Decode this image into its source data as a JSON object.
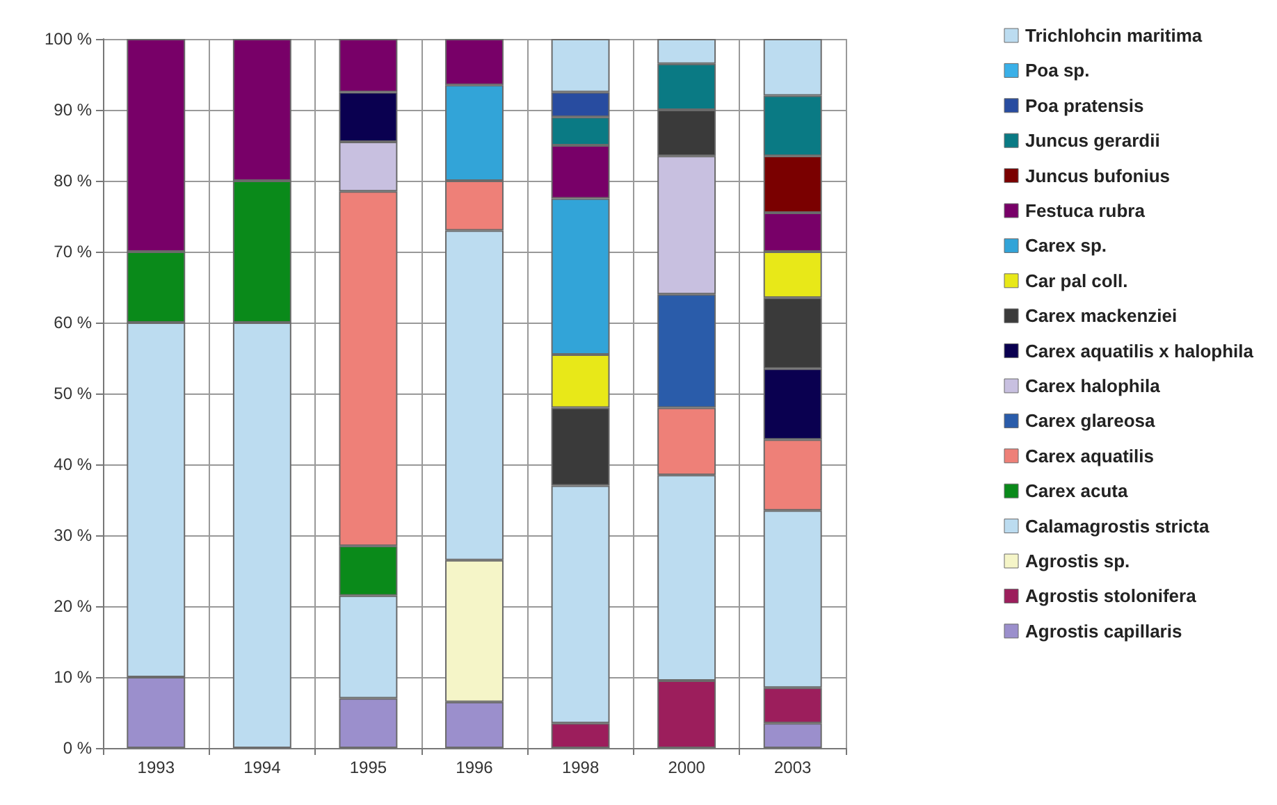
{
  "chart_data": {
    "type": "bar",
    "stacked": true,
    "categories": [
      "1993",
      "1994",
      "1995",
      "1996",
      "1998",
      "2000",
      "2003"
    ],
    "ylim": [
      0,
      100
    ],
    "yticks": [
      {
        "value": 0,
        "label": "0 %"
      },
      {
        "value": 10,
        "label": "10 %"
      },
      {
        "value": 20,
        "label": "20 %"
      },
      {
        "value": 30,
        "label": "30 %"
      },
      {
        "value": 40,
        "label": "40 %"
      },
      {
        "value": 50,
        "label": "50 %"
      },
      {
        "value": 60,
        "label": "60 %"
      },
      {
        "value": 70,
        "label": "70 %"
      },
      {
        "value": 80,
        "label": "80 %"
      },
      {
        "value": 90,
        "label": "90 %"
      },
      {
        "value": 100,
        "label": "100 %"
      }
    ],
    "grid": true,
    "legend": "right",
    "series": [
      {
        "name": "Agrostis capillaris",
        "color": "#9b8fcc",
        "values": [
          10,
          null,
          7,
          6.5,
          null,
          null,
          3.5
        ]
      },
      {
        "name": "Agrostis stolonifera",
        "color": "#9c1e5c",
        "values": [
          null,
          null,
          null,
          null,
          3.5,
          9.5,
          5
        ]
      },
      {
        "name": "Agrostis sp.",
        "color": "#f5f5c8",
        "values": [
          null,
          null,
          null,
          20,
          null,
          null,
          null
        ]
      },
      {
        "name": "Calamagrostis stricta",
        "color": "#bcdcf0",
        "values": [
          50,
          60,
          14.5,
          46.5,
          33.5,
          29,
          25
        ]
      },
      {
        "name": "Carex acuta",
        "color": "#0a8a1a",
        "values": [
          10,
          20,
          7,
          null,
          null,
          null,
          null
        ]
      },
      {
        "name": "Carex aquatilis",
        "color": "#ee8078",
        "values": [
          null,
          null,
          50,
          7,
          null,
          9.5,
          10
        ]
      },
      {
        "name": "Carex glareosa",
        "color": "#2a5caa",
        "values": [
          null,
          null,
          null,
          null,
          null,
          16,
          null
        ]
      },
      {
        "name": "Carex halophila",
        "color": "#c8c0e0",
        "values": [
          null,
          null,
          7,
          null,
          null,
          19.5,
          null
        ]
      },
      {
        "name": "Carex aquatilis x halophila",
        "color": "#0a0050",
        "values": [
          null,
          null,
          7,
          null,
          null,
          null,
          10
        ]
      },
      {
        "name": "Carex mackenziei",
        "color": "#3a3a3a",
        "values": [
          null,
          null,
          null,
          null,
          11,
          6.5,
          10
        ]
      },
      {
        "name": "Car pal coll.",
        "color": "#e8e818",
        "values": [
          null,
          null,
          null,
          null,
          7.5,
          null,
          6.5
        ]
      },
      {
        "name": "Carex sp.",
        "color": "#32a4d8",
        "values": [
          null,
          null,
          null,
          13.5,
          22,
          null,
          null
        ]
      },
      {
        "name": "Festuca rubra",
        "color": "#780068",
        "values": [
          30,
          20,
          7.5,
          6.5,
          7.5,
          null,
          5.5
        ]
      },
      {
        "name": "Juncus bufonius",
        "color": "#7a0000",
        "values": [
          null,
          null,
          null,
          null,
          null,
          null,
          8
        ]
      },
      {
        "name": "Juncus gerardii",
        "color": "#0a7a84",
        "values": [
          null,
          null,
          null,
          null,
          4,
          6.5,
          8.5
        ]
      },
      {
        "name": "Poa pratensis",
        "color": "#284ca0",
        "values": [
          null,
          null,
          null,
          null,
          3.5,
          null,
          null
        ]
      },
      {
        "name": "Poa sp.",
        "color": "#3ab0e8",
        "values": [
          null,
          null,
          null,
          null,
          null,
          null,
          null
        ]
      },
      {
        "name": "Trichlohcin maritima",
        "color": "#bcdcf0",
        "values": [
          null,
          null,
          null,
          null,
          7.5,
          3.5,
          8
        ]
      }
    ]
  }
}
